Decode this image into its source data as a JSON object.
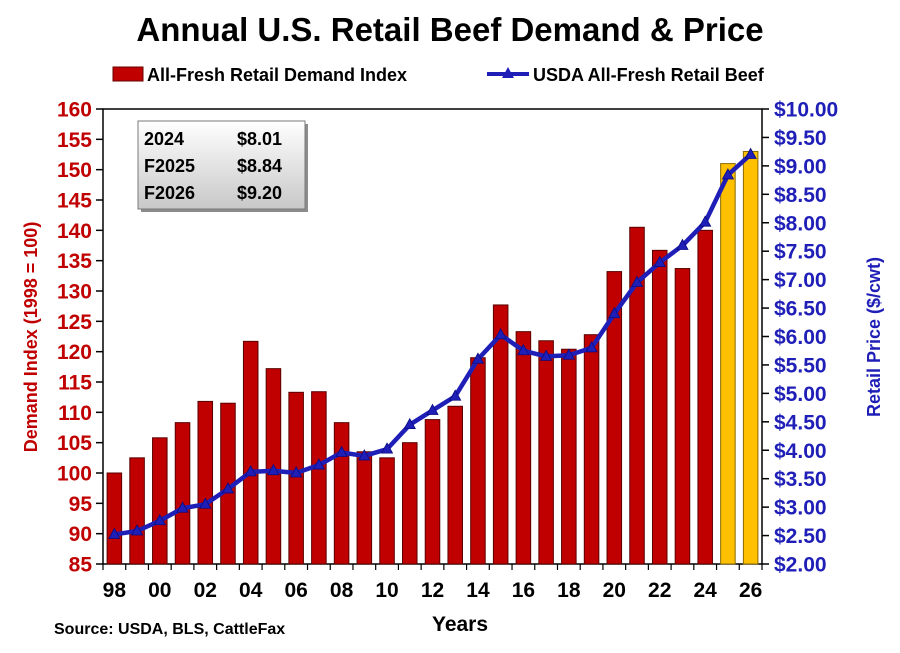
{
  "chart_data": {
    "type": "bar",
    "title": "Annual U.S. Retail Beef Demand & Price",
    "xlabel": "Years",
    "ylabel": "Demand Index (1998 = 100)",
    "y2label": "Retail Price ($/cwt)",
    "source": "Source: USDA, BLS, CattleFax",
    "ylim": [
      85,
      160
    ],
    "y2lim": [
      2.0,
      10.0
    ],
    "yticks": [
      "85",
      "90",
      "95",
      "100",
      "105",
      "110",
      "115",
      "120",
      "125",
      "130",
      "135",
      "140",
      "145",
      "150",
      "155",
      "160"
    ],
    "y2ticks": [
      "$2.00",
      "$2.50",
      "$3.00",
      "$3.50",
      "$4.00",
      "$4.50",
      "$5.00",
      "$5.50",
      "$6.00",
      "$6.50",
      "$7.00",
      "$7.50",
      "$8.00",
      "$8.50",
      "$9.00",
      "$9.50",
      "$10.00"
    ],
    "xticks": [
      "98",
      "00",
      "02",
      "04",
      "06",
      "08",
      "10",
      "12",
      "14",
      "16",
      "18",
      "20",
      "22",
      "24",
      "26"
    ],
    "years": [
      1998,
      1999,
      2000,
      2001,
      2002,
      2003,
      2004,
      2005,
      2006,
      2007,
      2008,
      2009,
      2010,
      2011,
      2012,
      2013,
      2014,
      2015,
      2016,
      2017,
      2018,
      2019,
      2020,
      2021,
      2022,
      2023,
      2024,
      2025,
      2026
    ],
    "series": [
      {
        "name": "All-Fresh Retail Demand Index",
        "kind": "bar",
        "axis": "left",
        "color": "#c00000",
        "forecast_color": "#ffc000",
        "forecast_from_year": 2025,
        "values": [
          100.0,
          102.5,
          105.8,
          108.3,
          111.8,
          111.5,
          121.7,
          117.2,
          113.3,
          113.4,
          108.3,
          103.5,
          102.5,
          105.0,
          108.8,
          111.0,
          119.0,
          127.7,
          123.3,
          121.8,
          120.4,
          122.8,
          133.2,
          140.5,
          136.7,
          133.7,
          140.0,
          151.0,
          153.0
        ]
      },
      {
        "name": "USDA All-Fresh Retail Beef",
        "kind": "line",
        "axis": "right",
        "color": "#1f1fb8",
        "marker": "triangle",
        "values": [
          2.52,
          2.58,
          2.76,
          2.98,
          3.05,
          3.32,
          3.62,
          3.64,
          3.6,
          3.74,
          3.96,
          3.9,
          4.02,
          4.45,
          4.7,
          4.95,
          5.6,
          6.03,
          5.75,
          5.65,
          5.67,
          5.8,
          6.4,
          6.95,
          7.3,
          7.6,
          8.01,
          8.84,
          9.2
        ]
      }
    ],
    "grid": false,
    "legend": "top"
  },
  "price_box": {
    "rows": [
      {
        "label": "2024",
        "value": "$8.01"
      },
      {
        "label": "F2025",
        "value": "$8.84"
      },
      {
        "label": "F2026",
        "value": "$9.20"
      }
    ]
  }
}
